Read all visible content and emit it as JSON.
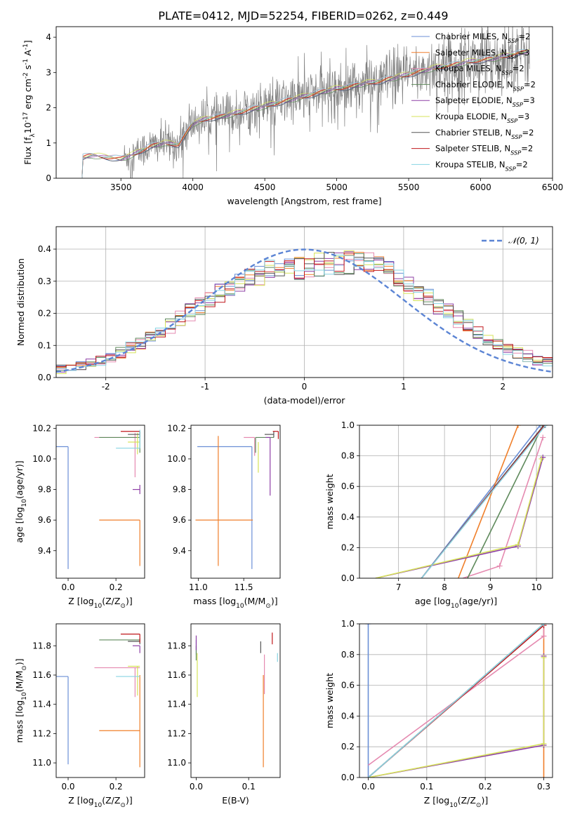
{
  "figure": {
    "title": "PLATE=0412, MJD=52254, FIBERID=0262, z=0.449"
  },
  "models": [
    {
      "name": "Chabrier MILES",
      "nssp": "2",
      "color": "#6b8fd6"
    },
    {
      "name": "Salpeter MILES",
      "nssp": "3",
      "color": "#f07f2a"
    },
    {
      "name": "Kroupa MILES",
      "nssp": "2",
      "color": "#e58ab0"
    },
    {
      "name": "Chabrier ELODIE",
      "nssp": "2",
      "color": "#5f8a5c"
    },
    {
      "name": "Salpeter ELODIE",
      "nssp": "3",
      "color": "#8e3fa6"
    },
    {
      "name": "Kroupa ELODIE",
      "nssp": "3",
      "color": "#d6e35a"
    },
    {
      "name": "Chabrier STELIB",
      "nssp": "2",
      "color": "#555555"
    },
    {
      "name": "Salpeter STELIB",
      "nssp": "2",
      "color": "#c0171b"
    },
    {
      "name": "Kroupa STELIB",
      "nssp": "2",
      "color": "#87d4e3"
    }
  ],
  "chart_data": [
    {
      "id": "spectrum",
      "type": "line",
      "xlabel": "wavelength [Angstrom, rest frame]",
      "ylabel": "Flux [f$_\\lambda$10$^{-17}$ erg cm$^{-2}$ s$^{-1}$ A$^{-1}$]",
      "xlim": [
        3050,
        6500
      ],
      "ylim": [
        0,
        4.3
      ],
      "xticks": [
        3500,
        4000,
        4500,
        5000,
        5500,
        6000,
        6500
      ],
      "yticks": [
        0,
        1,
        2,
        3,
        4
      ],
      "data_color": "#808080",
      "data_x_range": [
        3520,
        6340
      ],
      "model_x_range": [
        3230,
        6340
      ],
      "model_points": [
        {
          "x": 3230,
          "y": 0.0
        },
        {
          "x": 3235,
          "y": 0.6
        },
        {
          "x": 3300,
          "y": 0.65
        },
        {
          "x": 3400,
          "y": 0.6
        },
        {
          "x": 3500,
          "y": 0.55
        },
        {
          "x": 3600,
          "y": 0.7
        },
        {
          "x": 3700,
          "y": 0.9
        },
        {
          "x": 3800,
          "y": 1.0
        },
        {
          "x": 3900,
          "y": 0.95
        },
        {
          "x": 4000,
          "y": 1.55
        },
        {
          "x": 4100,
          "y": 1.7
        },
        {
          "x": 4200,
          "y": 1.75
        },
        {
          "x": 4300,
          "y": 1.85
        },
        {
          "x": 4400,
          "y": 1.95
        },
        {
          "x": 4500,
          "y": 2.05
        },
        {
          "x": 4600,
          "y": 2.15
        },
        {
          "x": 4700,
          "y": 2.25
        },
        {
          "x": 4800,
          "y": 2.35
        },
        {
          "x": 4900,
          "y": 2.45
        },
        {
          "x": 5000,
          "y": 2.55
        },
        {
          "x": 5100,
          "y": 2.6
        },
        {
          "x": 5200,
          "y": 2.7
        },
        {
          "x": 5300,
          "y": 2.75
        },
        {
          "x": 5400,
          "y": 2.85
        },
        {
          "x": 5500,
          "y": 2.95
        },
        {
          "x": 5600,
          "y": 3.05
        },
        {
          "x": 5700,
          "y": 3.15
        },
        {
          "x": 5800,
          "y": 3.2
        },
        {
          "x": 5900,
          "y": 3.3
        },
        {
          "x": 6000,
          "y": 3.35
        },
        {
          "x": 6100,
          "y": 3.4
        },
        {
          "x": 6200,
          "y": 3.5
        },
        {
          "x": 6340,
          "y": 3.6
        }
      ]
    },
    {
      "id": "residuals",
      "type": "line",
      "xlabel": "(data-model)/error",
      "ylabel": "Normed distribution",
      "xlim": [
        -2.5,
        2.5
      ],
      "ylim": [
        0,
        0.47
      ],
      "xticks": [
        -2,
        -1,
        0,
        1,
        2
      ],
      "yticks": [
        0.0,
        0.1,
        0.2,
        0.3,
        0.4
      ],
      "gaussian_label": "𝒩(0, 1)",
      "gaussian_color": "#5b84d4",
      "hist_bin_width": 0.1
    },
    {
      "id": "age-vs-Z",
      "type": "scatter",
      "xlabel": "Z [log$_{10}$($Z/Z_\\odot$)]",
      "ylabel": "age  [log$_{10}$($age/yr$)]",
      "xlim": [
        -0.05,
        0.32
      ],
      "ylim": [
        9.22,
        10.22
      ],
      "xticks": [
        0.0,
        0.2
      ],
      "yticks": [
        9.4,
        9.6,
        9.8,
        10.0,
        10.2
      ],
      "points": [
        {
          "model": 0,
          "x": 0.0,
          "xerr": [
            0.3,
            0.0
          ],
          "y": 10.08,
          "yerr": [
            0.8,
            0.0
          ]
        },
        {
          "model": 1,
          "x": 0.3,
          "xerr": [
            0.17,
            0.0
          ],
          "y": 9.6,
          "yerr": [
            0.3,
            0.0
          ]
        },
        {
          "model": 2,
          "x": 0.28,
          "xerr": [
            0.17,
            0.02
          ],
          "y": 10.14,
          "yerr": [
            0.26,
            0.03
          ]
        },
        {
          "model": 3,
          "x": 0.3,
          "xerr": [
            0.17,
            0.0
          ],
          "y": 10.14,
          "yerr": [
            0.1,
            0.04
          ]
        },
        {
          "model": 4,
          "x": 0.3,
          "xerr": [
            0.03,
            0.0
          ],
          "y": 9.8,
          "yerr": [
            0.03,
            0.03
          ]
        },
        {
          "model": 5,
          "x": 0.29,
          "xerr": [
            0.04,
            0.01
          ],
          "y": 10.11,
          "yerr": [
            0.08,
            0.06
          ]
        },
        {
          "model": 6,
          "x": 0.3,
          "xerr": [
            0.05,
            0.0
          ],
          "y": 10.16,
          "yerr": [
            0.02,
            0.02
          ]
        },
        {
          "model": 7,
          "x": 0.3,
          "xerr": [
            0.08,
            0.0
          ],
          "y": 10.18,
          "yerr": [
            0.0,
            0.0
          ]
        },
        {
          "model": 8,
          "x": 0.3,
          "xerr": [
            0.1,
            0.0
          ],
          "y": 10.07,
          "yerr": [
            0.0,
            0.12
          ]
        }
      ]
    },
    {
      "id": "age-vs-mass",
      "type": "scatter",
      "xlabel": "mass [log$_{10}$($M/M_\\odot$)]",
      "ylabel": "",
      "xlim": [
        10.92,
        11.9
      ],
      "ylim": [
        9.22,
        10.22
      ],
      "xticks": [
        11.0,
        11.5
      ],
      "yticks": [
        9.4,
        9.6,
        9.8,
        10.0,
        10.2
      ],
      "points": [
        {
          "model": 0,
          "x": 11.59,
          "xerr": [
            0.6,
            0.0
          ],
          "y": 10.08,
          "yerr": [
            0.8,
            0.0
          ]
        },
        {
          "model": 1,
          "x": 11.22,
          "xerr": [
            0.25,
            0.38
          ],
          "y": 9.6,
          "yerr": [
            0.3,
            0.55
          ]
        },
        {
          "model": 2,
          "x": 11.62,
          "xerr": [
            0.12,
            0.0
          ],
          "y": 10.14,
          "yerr": [
            0.12,
            0.0
          ]
        },
        {
          "model": 3,
          "x": 11.63,
          "xerr": [
            0.0,
            0.2
          ],
          "y": 10.14,
          "yerr": [
            0.1,
            0.0
          ]
        },
        {
          "model": 4,
          "x": 11.79,
          "xerr": [
            0.05,
            0.0
          ],
          "y": 10.14,
          "yerr": [
            0.38,
            0.0
          ]
        },
        {
          "model": 5,
          "x": 11.66,
          "xerr": [
            0.0,
            0.0
          ],
          "y": 10.11,
          "yerr": [
            0.2,
            0.0
          ]
        },
        {
          "model": 6,
          "x": 11.83,
          "xerr": [
            0.1,
            0.0
          ],
          "y": 10.16,
          "yerr": [
            0.02,
            0.02
          ]
        },
        {
          "model": 7,
          "x": 11.88,
          "xerr": [
            0.06,
            0.0
          ],
          "y": 10.18,
          "yerr": [
            0.05,
            0.0
          ]
        },
        {
          "model": 8,
          "x": 11.69,
          "xerr": [
            0.0,
            0.0
          ],
          "y": 10.07,
          "yerr": [
            0.0,
            0.0
          ]
        }
      ]
    },
    {
      "id": "cumulative-age",
      "type": "line",
      "xlabel": "age  [log$_{10}$($age/yr$)]",
      "ylabel": "mass weight",
      "xlim": [
        6.15,
        10.35
      ],
      "ylim": [
        0.0,
        1.0
      ],
      "xticks": [
        7,
        8,
        9,
        10
      ],
      "yticks": [
        0.0,
        0.2,
        0.4,
        0.6,
        0.8,
        1.0
      ],
      "curves": [
        {
          "model": 0,
          "x": [
            7.5,
            10.08
          ],
          "y": [
            0.0,
            1.0
          ]
        },
        {
          "model": 1,
          "x": [
            8.3,
            9.6
          ],
          "y": [
            0.0,
            1.0
          ]
        },
        {
          "model": 2,
          "x": [
            8.4,
            9.2,
            10.14
          ],
          "y": [
            0.0,
            0.08,
            0.92
          ]
        },
        {
          "model": 3,
          "x": [
            8.5,
            10.14
          ],
          "y": [
            0.0,
            1.0
          ]
        },
        {
          "model": 4,
          "x": [
            6.5,
            9.6,
            10.14
          ],
          "y": [
            0.0,
            0.21,
            0.79
          ]
        },
        {
          "model": 5,
          "x": [
            6.5,
            9.6,
            10.11
          ],
          "y": [
            0.0,
            0.22,
            0.78
          ]
        },
        {
          "model": 6,
          "x": [
            7.5,
            10.16
          ],
          "y": [
            0.0,
            1.0
          ]
        },
        {
          "model": 7,
          "x": [
            7.5,
            10.18
          ],
          "y": [
            0.0,
            1.0
          ]
        },
        {
          "model": 8,
          "x": [
            7.5,
            10.2
          ],
          "y": [
            0.0,
            1.0
          ]
        }
      ]
    },
    {
      "id": "mass-vs-Z",
      "type": "scatter",
      "xlabel": "Z [log$_{10}$($Z/Z_\\odot$)]",
      "ylabel": "mass [log$_{10}$($M/M_\\odot$)]",
      "xlim": [
        -0.05,
        0.32
      ],
      "ylim": [
        10.9,
        11.95
      ],
      "xticks": [
        0.0,
        0.2
      ],
      "yticks": [
        11.0,
        11.2,
        11.4,
        11.6,
        11.8
      ],
      "points": [
        {
          "model": 0,
          "x": 0.0,
          "xerr": [
            0.3,
            0.0
          ],
          "y": 11.59,
          "yerr": [
            0.6,
            0.0
          ]
        },
        {
          "model": 1,
          "x": 0.3,
          "xerr": [
            0.17,
            0.0
          ],
          "y": 11.22,
          "yerr": [
            0.25,
            0.38
          ]
        },
        {
          "model": 2,
          "x": 0.28,
          "xerr": [
            0.17,
            0.02
          ],
          "y": 11.65,
          "yerr": [
            0.2,
            0.0
          ]
        },
        {
          "model": 3,
          "x": 0.3,
          "xerr": [
            0.17,
            0.0
          ],
          "y": 11.84,
          "yerr": [
            0.0,
            0.0
          ]
        },
        {
          "model": 4,
          "x": 0.3,
          "xerr": [
            0.03,
            0.0
          ],
          "y": 11.8,
          "yerr": [
            0.05,
            0.0
          ]
        },
        {
          "model": 5,
          "x": 0.29,
          "xerr": [
            0.04,
            0.01
          ],
          "y": 11.66,
          "yerr": [
            0.2,
            0.0
          ]
        },
        {
          "model": 6,
          "x": 0.3,
          "xerr": [
            0.05,
            0.0
          ],
          "y": 11.83,
          "yerr": [
            0.02,
            0.02
          ]
        },
        {
          "model": 7,
          "x": 0.3,
          "xerr": [
            0.08,
            0.0
          ],
          "y": 11.88,
          "yerr": [
            0.06,
            0.0
          ]
        },
        {
          "model": 8,
          "x": 0.3,
          "xerr": [
            0.1,
            0.0
          ],
          "y": 11.59,
          "yerr": [
            0.0,
            0.0
          ]
        }
      ]
    },
    {
      "id": "mass-vs-ebv",
      "type": "scatter",
      "xlabel": "E(B-V)",
      "ylabel": "",
      "xlim": [
        -0.01,
        0.16
      ],
      "ylim": [
        10.9,
        11.95
      ],
      "xticks": [
        0.0,
        0.1
      ],
      "yticks": [
        11.0,
        11.2,
        11.4,
        11.6,
        11.8
      ],
      "points": [
        {
          "model": 0,
          "x": 0.0,
          "y": 11.79,
          "yerr": [
            0.05,
            0.05
          ]
        },
        {
          "model": 1,
          "x": 0.128,
          "y": 11.22,
          "yerr": [
            0.25,
            0.38
          ]
        },
        {
          "model": 2,
          "x": 0.13,
          "y": 11.62,
          "yerr": [
            0.15,
            0.12
          ]
        },
        {
          "model": 3,
          "x": 0.0,
          "y": 11.75,
          "yerr": [
            0.05,
            0.05
          ]
        },
        {
          "model": 4,
          "x": 0.0,
          "y": 11.82,
          "yerr": [
            0.05,
            0.05
          ]
        },
        {
          "model": 5,
          "x": 0.002,
          "y": 11.6,
          "yerr": [
            0.15,
            0.15
          ]
        },
        {
          "model": 6,
          "x": 0.123,
          "y": 11.79,
          "yerr": [
            0.04,
            0.04
          ]
        },
        {
          "model": 7,
          "x": 0.145,
          "y": 11.85,
          "yerr": [
            0.04,
            0.04
          ]
        },
        {
          "model": 8,
          "x": 0.155,
          "y": 11.72,
          "yerr": [
            0.03,
            0.03
          ]
        }
      ]
    },
    {
      "id": "cumulative-Z",
      "type": "line",
      "xlabel": "Z [log$_{10}$($Z/Z_\\odot$)]",
      "ylabel": "mass weight",
      "xlim": [
        -0.015,
        0.315
      ],
      "ylim": [
        0.0,
        1.0
      ],
      "xticks": [
        0.0,
        0.1,
        0.2,
        0.3
      ],
      "yticks": [
        0.0,
        0.2,
        0.4,
        0.6,
        0.8,
        1.0
      ],
      "curves": [
        {
          "model": 0,
          "x": [
            0.0,
            0.0
          ],
          "y": [
            0.0,
            1.0
          ]
        },
        {
          "model": 1,
          "x": [
            0.3,
            0.3
          ],
          "y": [
            0.0,
            1.0
          ]
        },
        {
          "model": 2,
          "x": [
            0.0,
            0.3,
            0.3
          ],
          "y": [
            0.08,
            0.92,
            1.0
          ]
        },
        {
          "model": 3,
          "x": [
            0.0,
            0.3
          ],
          "y": [
            0.0,
            1.0
          ]
        },
        {
          "model": 4,
          "x": [
            0.0,
            0.3,
            0.3
          ],
          "y": [
            0.0,
            0.21,
            0.79
          ]
        },
        {
          "model": 5,
          "x": [
            0.0,
            0.3,
            0.3
          ],
          "y": [
            0.0,
            0.22,
            0.78
          ]
        },
        {
          "model": 6,
          "x": [
            0.0,
            0.3
          ],
          "y": [
            0.0,
            1.0
          ]
        },
        {
          "model": 7,
          "x": [
            0.0,
            0.3
          ],
          "y": [
            0.0,
            0.99
          ]
        },
        {
          "model": 8,
          "x": [
            0.0,
            0.3
          ],
          "y": [
            0.0,
            1.0
          ]
        }
      ]
    }
  ]
}
